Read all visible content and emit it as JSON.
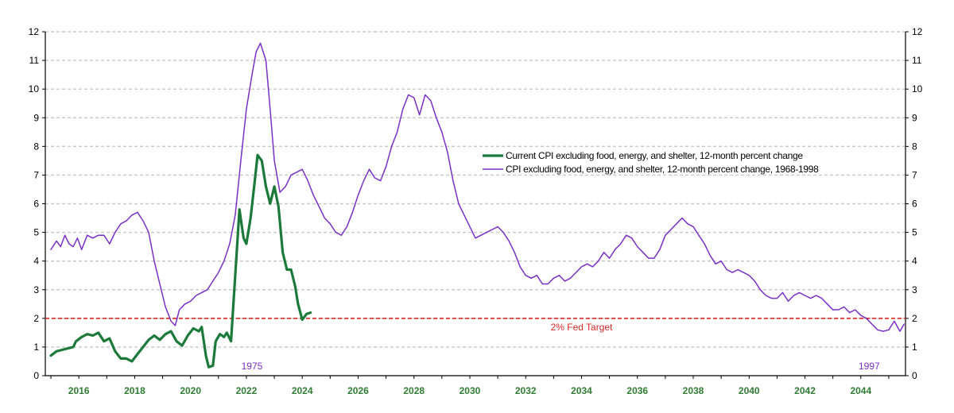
{
  "chart_data": {
    "type": "line",
    "title": "",
    "xlabel": "",
    "ylabel": "",
    "ylim": [
      0,
      12
    ],
    "x_range": [
      2014.8,
      2045.6
    ],
    "y_ticks": [
      "0",
      "1",
      "2",
      "3",
      "4",
      "5",
      "6",
      "7",
      "8",
      "9",
      "10",
      "11",
      "12"
    ],
    "x_ticks": [
      {
        "x": 2016,
        "label": "2016"
      },
      {
        "x": 2018,
        "label": "2018"
      },
      {
        "x": 2020,
        "label": "2020"
      },
      {
        "x": 2022,
        "label": "2022"
      },
      {
        "x": 2024,
        "label": "2024"
      },
      {
        "x": 2026,
        "label": "2026"
      },
      {
        "x": 2028,
        "label": "2028"
      },
      {
        "x": 2030,
        "label": "2030"
      },
      {
        "x": 2032,
        "label": "2032"
      },
      {
        "x": 2034,
        "label": "2034"
      },
      {
        "x": 2036,
        "label": "2036"
      },
      {
        "x": 2038,
        "label": "2038"
      },
      {
        "x": 2040,
        "label": "2040"
      },
      {
        "x": 2042,
        "label": "2042"
      },
      {
        "x": 2044,
        "label": "2044"
      }
    ],
    "gridlines": "horizontal dashed",
    "legend_position": "center-right",
    "series": [
      {
        "name": "Current CPI excluding food, energy, and shelter, 12-month percent change",
        "color": "#1b7a3a",
        "points": [
          [
            2015.0,
            0.7
          ],
          [
            2015.2,
            0.85
          ],
          [
            2015.4,
            0.9
          ],
          [
            2015.6,
            0.95
          ],
          [
            2015.8,
            1.0
          ],
          [
            2015.9,
            1.2
          ],
          [
            2016.1,
            1.35
          ],
          [
            2016.3,
            1.45
          ],
          [
            2016.5,
            1.4
          ],
          [
            2016.7,
            1.5
          ],
          [
            2016.9,
            1.2
          ],
          [
            2017.1,
            1.3
          ],
          [
            2017.3,
            0.85
          ],
          [
            2017.5,
            0.6
          ],
          [
            2017.7,
            0.6
          ],
          [
            2017.9,
            0.5
          ],
          [
            2018.1,
            0.75
          ],
          [
            2018.3,
            1.0
          ],
          [
            2018.5,
            1.25
          ],
          [
            2018.7,
            1.4
          ],
          [
            2018.9,
            1.25
          ],
          [
            2019.1,
            1.45
          ],
          [
            2019.3,
            1.55
          ],
          [
            2019.5,
            1.2
          ],
          [
            2019.7,
            1.05
          ],
          [
            2019.9,
            1.4
          ],
          [
            2020.1,
            1.65
          ],
          [
            2020.3,
            1.55
          ],
          [
            2020.4,
            1.7
          ],
          [
            2020.55,
            0.7
          ],
          [
            2020.65,
            0.3
          ],
          [
            2020.8,
            0.35
          ],
          [
            2020.9,
            1.2
          ],
          [
            2021.05,
            1.45
          ],
          [
            2021.2,
            1.35
          ],
          [
            2021.3,
            1.5
          ],
          [
            2021.45,
            1.2
          ],
          [
            2021.6,
            3.5
          ],
          [
            2021.75,
            5.8
          ],
          [
            2021.9,
            4.8
          ],
          [
            2022.0,
            4.6
          ],
          [
            2022.15,
            5.5
          ],
          [
            2022.3,
            6.8
          ],
          [
            2022.4,
            7.7
          ],
          [
            2022.55,
            7.5
          ],
          [
            2022.7,
            6.6
          ],
          [
            2022.85,
            6.0
          ],
          [
            2023.0,
            6.6
          ],
          [
            2023.15,
            5.9
          ],
          [
            2023.3,
            4.3
          ],
          [
            2023.45,
            3.7
          ],
          [
            2023.6,
            3.7
          ],
          [
            2023.75,
            3.1
          ],
          [
            2023.85,
            2.5
          ],
          [
            2024.0,
            1.95
          ],
          [
            2024.15,
            2.15
          ],
          [
            2024.3,
            2.2
          ]
        ]
      },
      {
        "name": "CPI excluding food, energy, and shelter, 12-month percent change, 1968-1998",
        "color": "#7a2fc7",
        "points": [
          [
            2015.0,
            4.4
          ],
          [
            2015.2,
            4.7
          ],
          [
            2015.35,
            4.5
          ],
          [
            2015.5,
            4.9
          ],
          [
            2015.65,
            4.6
          ],
          [
            2015.8,
            4.5
          ],
          [
            2015.95,
            4.8
          ],
          [
            2016.1,
            4.4
          ],
          [
            2016.3,
            4.9
          ],
          [
            2016.5,
            4.8
          ],
          [
            2016.7,
            4.9
          ],
          [
            2016.9,
            4.9
          ],
          [
            2017.1,
            4.6
          ],
          [
            2017.3,
            5.0
          ],
          [
            2017.5,
            5.3
          ],
          [
            2017.7,
            5.4
          ],
          [
            2017.9,
            5.6
          ],
          [
            2018.1,
            5.7
          ],
          [
            2018.3,
            5.4
          ],
          [
            2018.5,
            5.0
          ],
          [
            2018.7,
            4.0
          ],
          [
            2018.9,
            3.2
          ],
          [
            2019.1,
            2.4
          ],
          [
            2019.3,
            1.9
          ],
          [
            2019.45,
            1.75
          ],
          [
            2019.6,
            2.3
          ],
          [
            2019.8,
            2.5
          ],
          [
            2020.0,
            2.6
          ],
          [
            2020.2,
            2.8
          ],
          [
            2020.4,
            2.9
          ],
          [
            2020.6,
            3.0
          ],
          [
            2020.8,
            3.3
          ],
          [
            2021.0,
            3.6
          ],
          [
            2021.2,
            4.0
          ],
          [
            2021.4,
            4.6
          ],
          [
            2021.6,
            5.6
          ],
          [
            2021.8,
            7.5
          ],
          [
            2022.0,
            9.3
          ],
          [
            2022.2,
            10.5
          ],
          [
            2022.35,
            11.3
          ],
          [
            2022.5,
            11.6
          ],
          [
            2022.7,
            11.0
          ],
          [
            2022.85,
            9.3
          ],
          [
            2023.0,
            7.5
          ],
          [
            2023.2,
            6.4
          ],
          [
            2023.4,
            6.6
          ],
          [
            2023.6,
            7.0
          ],
          [
            2023.8,
            7.1
          ],
          [
            2024.0,
            7.2
          ],
          [
            2024.2,
            6.8
          ],
          [
            2024.4,
            6.3
          ],
          [
            2024.6,
            5.9
          ],
          [
            2024.8,
            5.5
          ],
          [
            2025.0,
            5.3
          ],
          [
            2025.2,
            5.0
          ],
          [
            2025.4,
            4.9
          ],
          [
            2025.6,
            5.2
          ],
          [
            2025.8,
            5.7
          ],
          [
            2026.0,
            6.3
          ],
          [
            2026.2,
            6.8
          ],
          [
            2026.4,
            7.2
          ],
          [
            2026.6,
            6.9
          ],
          [
            2026.8,
            6.8
          ],
          [
            2027.0,
            7.3
          ],
          [
            2027.2,
            8.0
          ],
          [
            2027.4,
            8.5
          ],
          [
            2027.6,
            9.3
          ],
          [
            2027.8,
            9.8
          ],
          [
            2028.0,
            9.7
          ],
          [
            2028.2,
            9.1
          ],
          [
            2028.4,
            9.8
          ],
          [
            2028.6,
            9.6
          ],
          [
            2028.8,
            9.0
          ],
          [
            2029.0,
            8.5
          ],
          [
            2029.2,
            7.8
          ],
          [
            2029.4,
            6.8
          ],
          [
            2029.6,
            6.0
          ],
          [
            2029.8,
            5.6
          ],
          [
            2030.0,
            5.2
          ],
          [
            2030.2,
            4.8
          ],
          [
            2030.4,
            4.9
          ],
          [
            2030.6,
            5.0
          ],
          [
            2030.8,
            5.1
          ],
          [
            2031.0,
            5.2
          ],
          [
            2031.2,
            5.0
          ],
          [
            2031.4,
            4.7
          ],
          [
            2031.6,
            4.3
          ],
          [
            2031.8,
            3.8
          ],
          [
            2032.0,
            3.5
          ],
          [
            2032.2,
            3.4
          ],
          [
            2032.4,
            3.5
          ],
          [
            2032.6,
            3.2
          ],
          [
            2032.8,
            3.2
          ],
          [
            2033.0,
            3.4
          ],
          [
            2033.2,
            3.5
          ],
          [
            2033.4,
            3.3
          ],
          [
            2033.6,
            3.4
          ],
          [
            2033.8,
            3.6
          ],
          [
            2034.0,
            3.8
          ],
          [
            2034.2,
            3.9
          ],
          [
            2034.4,
            3.8
          ],
          [
            2034.6,
            4.0
          ],
          [
            2034.8,
            4.3
          ],
          [
            2035.0,
            4.1
          ],
          [
            2035.2,
            4.4
          ],
          [
            2035.4,
            4.6
          ],
          [
            2035.6,
            4.9
          ],
          [
            2035.8,
            4.8
          ],
          [
            2036.0,
            4.5
          ],
          [
            2036.2,
            4.3
          ],
          [
            2036.4,
            4.1
          ],
          [
            2036.6,
            4.1
          ],
          [
            2036.8,
            4.4
          ],
          [
            2037.0,
            4.9
          ],
          [
            2037.2,
            5.1
          ],
          [
            2037.4,
            5.3
          ],
          [
            2037.6,
            5.5
          ],
          [
            2037.8,
            5.3
          ],
          [
            2038.0,
            5.2
          ],
          [
            2038.2,
            4.9
          ],
          [
            2038.4,
            4.6
          ],
          [
            2038.6,
            4.2
          ],
          [
            2038.8,
            3.9
          ],
          [
            2039.0,
            4.0
          ],
          [
            2039.2,
            3.7
          ],
          [
            2039.4,
            3.6
          ],
          [
            2039.6,
            3.7
          ],
          [
            2039.8,
            3.6
          ],
          [
            2040.0,
            3.5
          ],
          [
            2040.2,
            3.3
          ],
          [
            2040.4,
            3.0
          ],
          [
            2040.6,
            2.8
          ],
          [
            2040.8,
            2.7
          ],
          [
            2041.0,
            2.7
          ],
          [
            2041.2,
            2.9
          ],
          [
            2041.4,
            2.6
          ],
          [
            2041.6,
            2.8
          ],
          [
            2041.8,
            2.9
          ],
          [
            2042.0,
            2.8
          ],
          [
            2042.2,
            2.7
          ],
          [
            2042.4,
            2.8
          ],
          [
            2042.6,
            2.7
          ],
          [
            2042.8,
            2.5
          ],
          [
            2043.0,
            2.3
          ],
          [
            2043.2,
            2.3
          ],
          [
            2043.4,
            2.4
          ],
          [
            2043.6,
            2.2
          ],
          [
            2043.8,
            2.3
          ],
          [
            2044.0,
            2.1
          ],
          [
            2044.2,
            2.0
          ],
          [
            2044.4,
            1.8
          ],
          [
            2044.6,
            1.6
          ],
          [
            2044.8,
            1.55
          ],
          [
            2045.0,
            1.6
          ],
          [
            2045.2,
            1.9
          ],
          [
            2045.4,
            1.55
          ],
          [
            2045.55,
            1.8
          ]
        ]
      }
    ],
    "reference_line": {
      "y": 2,
      "label": "2% Fed Target",
      "color": "#d62828"
    },
    "annotations": [
      {
        "text": "1975",
        "x": 2022.2,
        "y": 0.2,
        "color": "#7a2fc7"
      },
      {
        "text": "1997",
        "x": 2044.3,
        "y": 0.2,
        "color": "#7a2fc7"
      }
    ]
  }
}
